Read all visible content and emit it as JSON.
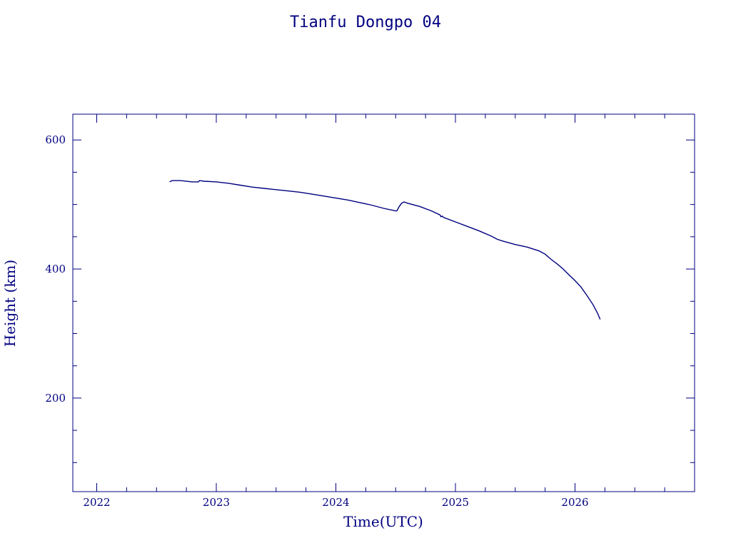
{
  "chart_data": {
    "type": "line",
    "title": "Tianfu Dongpo 04",
    "xlabel": "Time(UTC)",
    "ylabel": "Height (km)",
    "xlim": [
      2021.8,
      2027.0
    ],
    "ylim": [
      55,
      640
    ],
    "x_ticks": [
      2022,
      2023,
      2024,
      2025,
      2026
    ],
    "x_tick_labels": [
      "2022",
      "2023",
      "2024",
      "2025",
      "2026"
    ],
    "x_minor_step": 0.25,
    "y_ticks": [
      200,
      400,
      600
    ],
    "y_tick_labels": [
      "200",
      "400",
      "600"
    ],
    "y_minor_step": 50,
    "grid": false,
    "series": [
      {
        "color": "#000080",
        "x": [
          2022.61,
          2022.63,
          2022.7,
          2022.8,
          2022.85,
          2022.86,
          2022.9,
          2023.0,
          2023.1,
          2023.2,
          2023.3,
          2023.4,
          2023.5,
          2023.6,
          2023.7,
          2023.8,
          2023.9,
          2024.0,
          2024.1,
          2024.2,
          2024.3,
          2024.4,
          2024.5,
          2024.51,
          2024.53,
          2024.55,
          2024.57,
          2024.6,
          2024.7,
          2024.8,
          2024.87,
          2024.88,
          2024.89,
          2024.9,
          2025.0,
          2025.1,
          2025.2,
          2025.3,
          2025.35,
          2025.4,
          2025.5,
          2025.6,
          2025.7,
          2025.75,
          2025.8,
          2025.85,
          2025.9,
          2025.95,
          2026.0,
          2026.05,
          2026.1,
          2026.15,
          2026.19,
          2026.21
        ],
        "y": [
          535,
          537,
          537,
          535,
          535,
          537,
          536,
          535,
          533,
          530,
          527,
          525,
          523,
          521,
          519,
          516,
          513,
          510,
          507,
          503,
          499,
          494,
          490,
          490,
          497,
          502,
          504,
          502,
          497,
          490,
          484,
          481,
          482,
          480,
          473,
          466,
          459,
          451,
          446,
          443,
          438,
          434,
          428,
          423,
          415,
          408,
          400,
          391,
          382,
          372,
          359,
          345,
          331,
          322
        ]
      }
    ]
  }
}
